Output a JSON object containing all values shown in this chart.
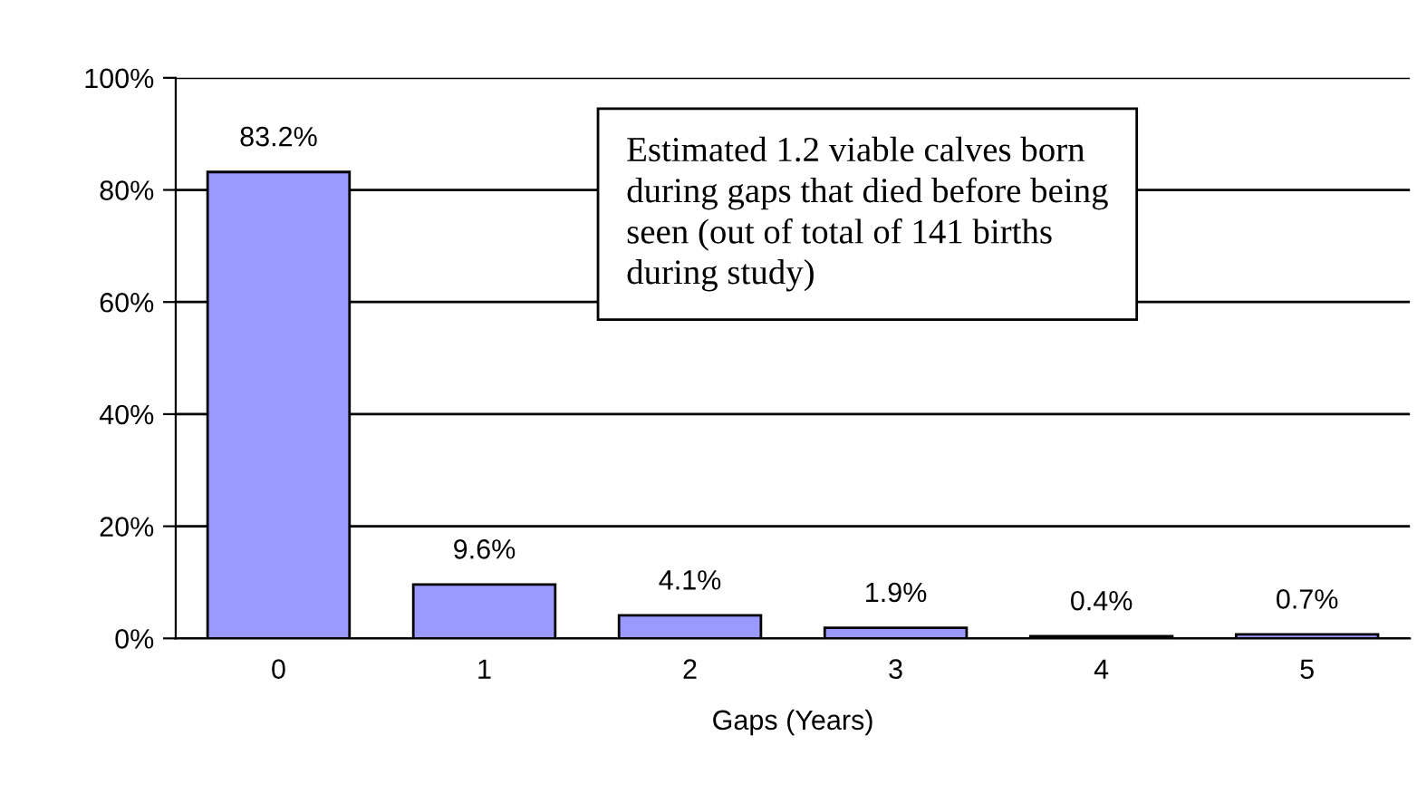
{
  "chart_data": {
    "type": "bar",
    "xlabel": "Gaps (Years)",
    "categories": [
      "0",
      "1",
      "2",
      "3",
      "4",
      "5"
    ],
    "values": [
      83.2,
      9.6,
      4.1,
      1.9,
      0.4,
      0.7
    ],
    "color": "#9999ff",
    "ylim": [
      0,
      100
    ],
    "yticks": [
      {
        "value": 0,
        "label": "0%"
      },
      {
        "value": 20,
        "label": "20%"
      },
      {
        "value": 40,
        "label": "40%"
      },
      {
        "value": 60,
        "label": "60%"
      },
      {
        "value": 80,
        "label": "80%"
      },
      {
        "value": 100,
        "label": "100%"
      }
    ],
    "grid": "y",
    "value_labels": [
      "83.2%",
      "9.6%",
      "4.1%",
      "1.9%",
      "0.4%",
      "0.7%"
    ],
    "legend": false,
    "annotations": [
      "Estimated 1.2 viable calves born\nduring gaps that died before being\nseen (out of total of 141 births\nduring study)"
    ]
  }
}
